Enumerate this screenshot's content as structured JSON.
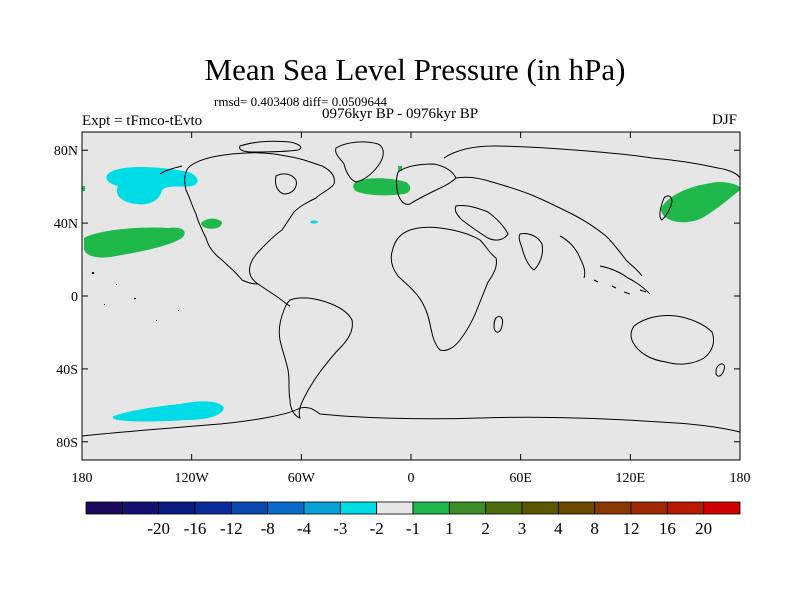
{
  "title": "Mean Sea Level Pressure (in hPa)",
  "stats": "rmsd= 0.403408 diff= 0.0509644",
  "period": "0976kyr BP - 0976kyr BP",
  "expt": "Expt = tFmco-tEvto",
  "season": "DJF",
  "map": {
    "background": "#e6e6e6",
    "lat_ticks": [
      "80N",
      "40N",
      "0",
      "40S",
      "80S"
    ],
    "lat_values": [
      80,
      40,
      0,
      -40,
      -80
    ],
    "lon_ticks": [
      "180",
      "120W",
      "60W",
      "0",
      "60E",
      "120E",
      "180"
    ],
    "lon_values": [
      -180,
      -120,
      -60,
      0,
      60,
      120,
      180
    ],
    "anomalies": [
      {
        "name": "north-pacific-negative",
        "level": "-2 to -1",
        "color": "#00dce6"
      },
      {
        "name": "subtropical-pacific-positive",
        "level": "1 to 2",
        "color": "#1fb84a"
      },
      {
        "name": "north-atlantic-positive",
        "level": "1 to 2",
        "color": "#1fb84a"
      },
      {
        "name": "east-asia-positive",
        "level": "1 to 2",
        "color": "#1fb84a"
      },
      {
        "name": "california-positive",
        "level": "1 to 2",
        "color": "#1fb84a"
      },
      {
        "name": "south-pacific-negative",
        "level": "-2 to -1",
        "color": "#00dce6"
      }
    ]
  },
  "colorbar": {
    "colors": [
      "#1c0a5e",
      "#14106e",
      "#0a1a82",
      "#0a2c9a",
      "#0a4ab0",
      "#0a6cc8",
      "#0aa0d8",
      "#00dce6",
      "#e6e6e6",
      "#1fb84a",
      "#3c8c2a",
      "#4c6e0e",
      "#5a5800",
      "#6e4a00",
      "#8a3a00",
      "#a02a00",
      "#b81800",
      "#d00000"
    ],
    "labels": [
      "-20",
      "-16",
      "-12",
      "-8",
      "-4",
      "-3",
      "-2",
      "-1",
      "1",
      "2",
      "3",
      "4",
      "8",
      "12",
      "16",
      "20"
    ]
  }
}
